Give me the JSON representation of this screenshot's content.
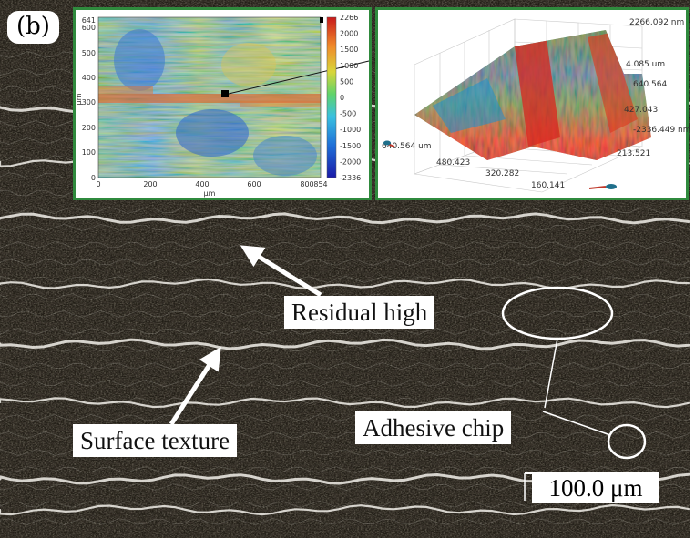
{
  "figure": {
    "panel_label": "(b)",
    "callouts": {
      "residual_high": "Residual high",
      "surface_texture": "Surface texture",
      "adhesive_chip": "Adhesive chip"
    },
    "scale_bar": "100.0 μm"
  },
  "inset_height_map": {
    "x_ticks": [
      "0",
      "200",
      "400",
      "600",
      "800",
      "854"
    ],
    "y_ticks": [
      "641",
      "600",
      "500",
      "400",
      "300",
      "200",
      "100",
      "0"
    ],
    "x_unit": "μm",
    "y_unit": "μm",
    "colorbar_ticks": [
      "2266",
      "2000",
      "1500",
      "1000",
      "500",
      "0",
      "-500",
      "-1000",
      "-1500",
      "-2000",
      "-2336"
    ]
  },
  "inset_3d_surface": {
    "z_top": "2266.092 nm",
    "z_bottom": "-2336.449 nm",
    "right_axis_labels": [
      "4.085 um",
      "640.564",
      "427.043",
      "213.521"
    ],
    "front_axis_labels": [
      "640.564 um",
      "480.423",
      "320.282",
      "160.141"
    ]
  },
  "colors": {
    "inset_border": "#2f8a3d",
    "background": "#1d1a14",
    "texture_ridge": "#f2f0ea"
  }
}
